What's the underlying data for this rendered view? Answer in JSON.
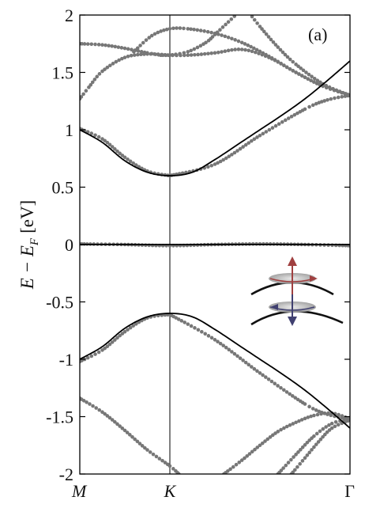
{
  "chart_data": {
    "type": "line",
    "panel_label": "(a)",
    "ylabel": "E − E",
    "ylabel_sub": "F",
    "ylabel_unit": "[eV]",
    "ylim": [
      -2,
      2
    ],
    "yticks": [
      2,
      1.5,
      1,
      0.5,
      0,
      -0.5,
      -1,
      -1.5,
      -2
    ],
    "ytick_labels": [
      "2",
      "1.5",
      "1",
      "0.5",
      "0",
      "-0.5",
      "-1",
      "-1.5",
      "-2"
    ],
    "xticks": [
      {
        "x": 0,
        "label": "M"
      },
      {
        "x": 1,
        "label": "K"
      },
      {
        "x": 3,
        "label": "Γ"
      }
    ],
    "xlim": [
      0,
      3
    ],
    "colors": {
      "dots": "#777777",
      "lines": "#000000",
      "arrow_up": "#a04040",
      "arrow_down": "#404070"
    },
    "dotted_series": [
      {
        "x": [
          0,
          0.25,
          0.5,
          0.75,
          1
        ],
        "y": [
          1.01,
          0.92,
          0.76,
          0.64,
          0.6
        ]
      },
      {
        "x": [
          1,
          1.5,
          2,
          2.5,
          2.75,
          3
        ],
        "y": [
          0.6,
          0.7,
          0.95,
          1.18,
          1.26,
          1.3
        ]
      },
      {
        "x": [
          0,
          0.25,
          0.5,
          0.75,
          1
        ],
        "y": [
          -1.02,
          -0.92,
          -0.76,
          -0.64,
          -0.61
        ]
      },
      {
        "x": [
          1,
          1.5,
          2,
          2.5,
          2.75,
          3
        ],
        "y": [
          -0.61,
          -0.83,
          -1.12,
          -1.39,
          -1.48,
          -1.52
        ]
      },
      {
        "x": [
          0,
          0.5,
          1,
          1.5,
          2,
          2.5,
          3
        ],
        "y": [
          0.005,
          0.0,
          -0.01,
          0.0,
          0.005,
          0.0,
          -0.01
        ]
      },
      {
        "x": [
          0,
          0.1,
          0.25,
          0.5,
          0.75,
          1
        ],
        "y": [
          1.27,
          1.37,
          1.51,
          1.63,
          1.66,
          1.65
        ]
      },
      {
        "x": [
          1,
          1.2,
          1.4,
          1.5,
          1.65,
          1.8
        ],
        "y": [
          1.65,
          1.68,
          1.76,
          1.83,
          1.94,
          2.05
        ]
      },
      {
        "x": [
          0,
          0.25,
          0.5,
          0.75,
          0.9
        ],
        "y": [
          1.75,
          1.74,
          1.71,
          1.67,
          1.65
        ]
      },
      {
        "x": [
          0.9,
          1.2,
          1.5,
          1.8,
          2.1,
          2.4,
          2.7,
          3
        ],
        "y": [
          1.65,
          1.65,
          1.67,
          1.7,
          1.63,
          1.5,
          1.38,
          1.3
        ]
      },
      {
        "x": [
          0.6,
          0.8,
          1,
          1.2,
          1.5,
          1.8,
          2.1,
          2.4,
          2.7,
          3
        ],
        "y": [
          1.68,
          1.82,
          1.88,
          1.88,
          1.84,
          1.76,
          1.64,
          1.5,
          1.38,
          1.3
        ]
      },
      {
        "x": [
          1.85,
          2,
          2.2,
          2.4,
          2.7,
          3
        ],
        "y": [
          2.05,
          1.9,
          1.72,
          1.57,
          1.4,
          1.3
        ]
      },
      {
        "x": [
          0,
          0.25,
          0.5,
          0.75,
          1,
          1.1
        ],
        "y": [
          -1.34,
          -1.46,
          -1.62,
          -1.79,
          -1.93,
          -2.0
        ]
      },
      {
        "x": [
          1.6,
          1.8,
          2,
          2.2,
          2.4,
          2.6,
          2.8,
          3
        ],
        "y": [
          -2.0,
          -1.88,
          -1.75,
          -1.63,
          -1.55,
          -1.49,
          -1.47,
          -1.52
        ]
      },
      {
        "x": [
          2.2,
          2.4,
          2.6,
          2.8,
          3
        ],
        "y": [
          -2.0,
          -1.83,
          -1.67,
          -1.56,
          -1.52
        ]
      },
      {
        "x": [
          2.35,
          2.5,
          2.65,
          2.8,
          3
        ],
        "y": [
          -2.0,
          -1.86,
          -1.72,
          -1.6,
          -1.53
        ]
      }
    ],
    "line_series": [
      {
        "x": [
          0,
          0.25,
          0.5,
          0.75,
          1,
          1.25,
          1.5,
          1.75,
          2,
          2.25,
          2.5,
          2.75,
          3
        ],
        "y": [
          1.0,
          0.89,
          0.73,
          0.63,
          0.6,
          0.63,
          0.74,
          0.87,
          1.0,
          1.13,
          1.27,
          1.43,
          1.6
        ]
      },
      {
        "x": [
          0,
          0.25,
          0.5,
          0.75,
          1,
          1.25,
          1.5,
          1.75,
          2,
          2.25,
          2.5,
          2.75,
          3
        ],
        "y": [
          -1.0,
          -0.89,
          -0.73,
          -0.63,
          -0.6,
          -0.63,
          -0.74,
          -0.87,
          -1.0,
          -1.13,
          -1.27,
          -1.43,
          -1.6
        ]
      },
      {
        "x": [
          0,
          3
        ],
        "y": [
          0,
          0
        ]
      }
    ]
  }
}
